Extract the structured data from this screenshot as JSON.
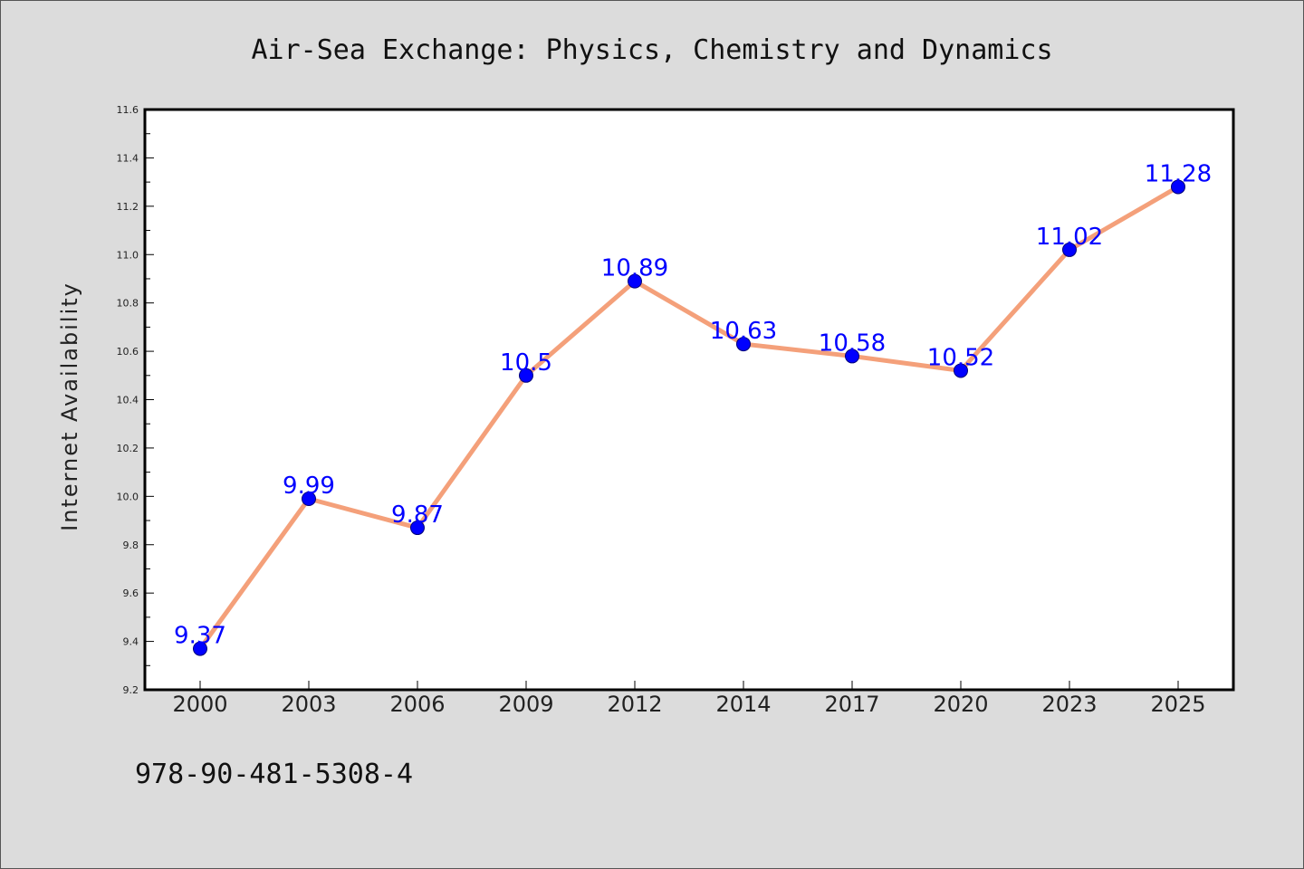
{
  "chart_data": {
    "type": "line",
    "title": "Air-Sea Exchange: Physics, Chemistry and Dynamics",
    "xlabel": "",
    "ylabel": "Internet Availability",
    "categories": [
      "2000",
      "2003",
      "2006",
      "2009",
      "2012",
      "2014",
      "2017",
      "2020",
      "2023",
      "2025"
    ],
    "series": [
      {
        "values": [
          9.37,
          9.99,
          9.87,
          10.5,
          10.89,
          10.63,
          10.58,
          10.52,
          11.02,
          11.28
        ],
        "labels": [
          "9.37",
          "9.99",
          "9.87",
          "10.5",
          "10.89",
          "10.63",
          "10.58",
          "10.52",
          "11.02",
          "11.28"
        ]
      }
    ],
    "ylim": [
      9.2,
      11.6
    ],
    "yticks": [
      "9.2",
      "9.4",
      "9.6",
      "9.8",
      "10.0",
      "10.2",
      "10.4",
      "10.6",
      "10.8",
      "11.0",
      "11.2",
      "11.4",
      "11.6"
    ],
    "grid": false,
    "line_color": "#f4a07a",
    "marker_color": "#0000ff",
    "label_color": "#0000ff",
    "annotation": "978-90-481-5308-4"
  }
}
